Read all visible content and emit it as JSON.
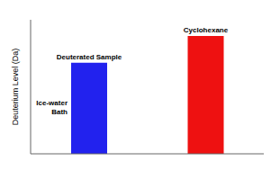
{
  "chart_data": {
    "type": "bar",
    "categories": [
      "Ice-water\nBath",
      "Cyclohexane"
    ],
    "values": [
      0.68,
      0.88
    ],
    "colors": [
      "#2222ee",
      "#ee1111"
    ],
    "ylim": [
      0,
      1.0
    ],
    "ylabel": "Deuterium Level (Da)",
    "annotations": [
      "Deuterated Sample"
    ],
    "tick_labels": false,
    "grid": false
  }
}
